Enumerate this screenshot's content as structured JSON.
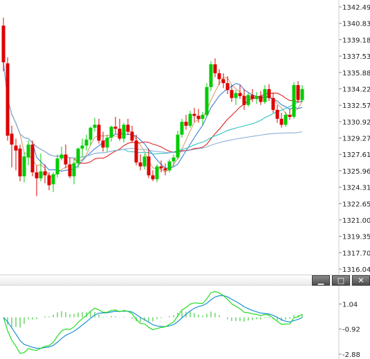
{
  "window_controls": {
    "minimize": "▁",
    "restore": "□",
    "close": "✕"
  },
  "chart_data": [
    {
      "type": "candlestick",
      "y_tick_labels": [
        "1342.49",
        "1340.83",
        "1339.18",
        "1337.53",
        "1335.88",
        "1334.22",
        "1332.57",
        "1330.92",
        "1329.27",
        "1327.61",
        "1325.96",
        "1324.31",
        "1322.65",
        "1321.00",
        "1319.35",
        "1317.70",
        "1316.04"
      ],
      "ylim": [
        1316.04,
        1342.49
      ],
      "up_color": "#00cc00",
      "down_color": "#dd0000",
      "candles": [
        [
          1340.6,
          1341.4,
          1336.0,
          1336.9
        ],
        [
          1336.8,
          1337.4,
          1329.0,
          1329.5
        ],
        [
          1329.7,
          1330.5,
          1326.3,
          1328.6
        ],
        [
          1328.5,
          1329.2,
          1326.0,
          1328.0
        ],
        [
          1328.2,
          1328.6,
          1324.9,
          1325.4
        ],
        [
          1325.4,
          1327.8,
          1324.8,
          1327.4
        ],
        [
          1327.3,
          1329.0,
          1326.5,
          1328.6
        ],
        [
          1328.6,
          1329.0,
          1325.4,
          1325.8
        ],
        [
          1325.8,
          1326.5,
          1323.4,
          1325.2
        ],
        [
          1325.2,
          1327.7,
          1324.9,
          1325.9
        ],
        [
          1325.9,
          1326.6,
          1324.7,
          1325.5
        ],
        [
          1325.5,
          1325.8,
          1324.0,
          1324.5
        ],
        [
          1324.6,
          1325.8,
          1323.8,
          1325.6
        ],
        [
          1325.6,
          1327.6,
          1325.3,
          1327.2
        ],
        [
          1327.2,
          1328.4,
          1327.0,
          1327.6
        ],
        [
          1327.6,
          1328.6,
          1326.2,
          1326.6
        ],
        [
          1326.6,
          1327.3,
          1325.2,
          1325.4
        ],
        [
          1325.4,
          1327.2,
          1324.6,
          1326.7
        ],
        [
          1326.7,
          1328.3,
          1326.2,
          1328.2
        ],
        [
          1328.2,
          1329.2,
          1327.3,
          1328.5
        ],
        [
          1328.5,
          1329.6,
          1328.0,
          1329.1
        ],
        [
          1329.1,
          1330.4,
          1328.5,
          1330.3
        ],
        [
          1330.3,
          1331.3,
          1329.9,
          1330.6
        ],
        [
          1330.6,
          1331.2,
          1328.7,
          1329.0
        ],
        [
          1329.0,
          1329.9,
          1327.9,
          1328.3
        ],
        [
          1328.3,
          1329.6,
          1327.9,
          1329.3
        ],
        [
          1329.3,
          1330.5,
          1328.9,
          1330.4
        ],
        [
          1330.4,
          1331.4,
          1329.7,
          1330.2
        ],
        [
          1330.2,
          1331.2,
          1329.0,
          1329.2
        ],
        [
          1329.2,
          1330.8,
          1328.8,
          1330.6
        ],
        [
          1330.6,
          1331.2,
          1329.6,
          1329.9
        ],
        [
          1329.9,
          1330.5,
          1328.8,
          1329.0
        ],
        [
          1329.0,
          1329.6,
          1326.5,
          1326.8
        ],
        [
          1326.8,
          1327.6,
          1326.0,
          1326.4
        ],
        [
          1326.4,
          1327.7,
          1326.1,
          1327.4
        ],
        [
          1327.4,
          1328.2,
          1325.2,
          1325.5
        ],
        [
          1325.5,
          1326.0,
          1324.9,
          1325.1
        ],
        [
          1325.1,
          1326.6,
          1324.8,
          1326.4
        ],
        [
          1326.4,
          1327.0,
          1325.8,
          1326.2
        ],
        [
          1326.2,
          1326.7,
          1325.5,
          1326.0
        ],
        [
          1326.0,
          1327.1,
          1325.8,
          1326.9
        ],
        [
          1326.9,
          1327.6,
          1326.4,
          1327.3
        ],
        [
          1327.3,
          1330.0,
          1327.1,
          1329.6
        ],
        [
          1329.6,
          1331.2,
          1329.3,
          1330.9
        ],
        [
          1330.9,
          1331.6,
          1330.1,
          1330.5
        ],
        [
          1330.5,
          1332.0,
          1330.3,
          1331.7
        ],
        [
          1331.7,
          1332.3,
          1330.9,
          1331.5
        ],
        [
          1331.5,
          1332.2,
          1330.8,
          1331.2
        ],
        [
          1331.2,
          1331.9,
          1330.6,
          1331.6
        ],
        [
          1331.6,
          1334.8,
          1331.4,
          1334.4
        ],
        [
          1334.4,
          1337.0,
          1334.0,
          1336.7
        ],
        [
          1336.7,
          1337.3,
          1335.4,
          1335.8
        ],
        [
          1335.8,
          1336.2,
          1334.6,
          1335.2
        ],
        [
          1335.2,
          1335.8,
          1334.3,
          1334.8
        ],
        [
          1334.8,
          1335.5,
          1333.7,
          1334.1
        ],
        [
          1334.1,
          1334.6,
          1332.9,
          1333.3
        ],
        [
          1333.3,
          1334.1,
          1332.6,
          1333.8
        ],
        [
          1333.8,
          1334.6,
          1333.2,
          1333.5
        ],
        [
          1333.5,
          1334.2,
          1332.1,
          1332.6
        ],
        [
          1332.6,
          1333.8,
          1332.4,
          1333.6
        ],
        [
          1333.6,
          1334.2,
          1332.9,
          1333.2
        ],
        [
          1333.2,
          1333.9,
          1332.7,
          1333.5
        ],
        [
          1333.5,
          1334.0,
          1332.6,
          1332.9
        ],
        [
          1332.9,
          1334.6,
          1332.7,
          1334.2
        ],
        [
          1334.2,
          1334.7,
          1333.0,
          1333.3
        ],
        [
          1333.3,
          1333.8,
          1331.8,
          1332.1
        ],
        [
          1332.1,
          1332.6,
          1330.8,
          1331.2
        ],
        [
          1331.2,
          1331.8,
          1330.3,
          1330.6
        ],
        [
          1330.6,
          1331.9,
          1330.4,
          1331.6
        ],
        [
          1331.6,
          1332.2,
          1331.1,
          1331.4
        ],
        [
          1331.4,
          1334.9,
          1331.2,
          1334.6
        ],
        [
          1334.6,
          1335.0,
          1332.8,
          1333.1
        ],
        [
          1333.1,
          1334.6,
          1332.9,
          1334.2
        ]
      ]
    },
    {
      "type": "line",
      "indicator": "oscillator",
      "y_tick_labels": [
        "1.04",
        "-0.92",
        "-2.88"
      ],
      "ylim": [
        -2.88,
        2.2
      ],
      "series": [
        {
          "color": "#1a8fd6"
        },
        {
          "color": "#22dd22"
        }
      ],
      "histogram_color": "#44cc44"
    }
  ]
}
